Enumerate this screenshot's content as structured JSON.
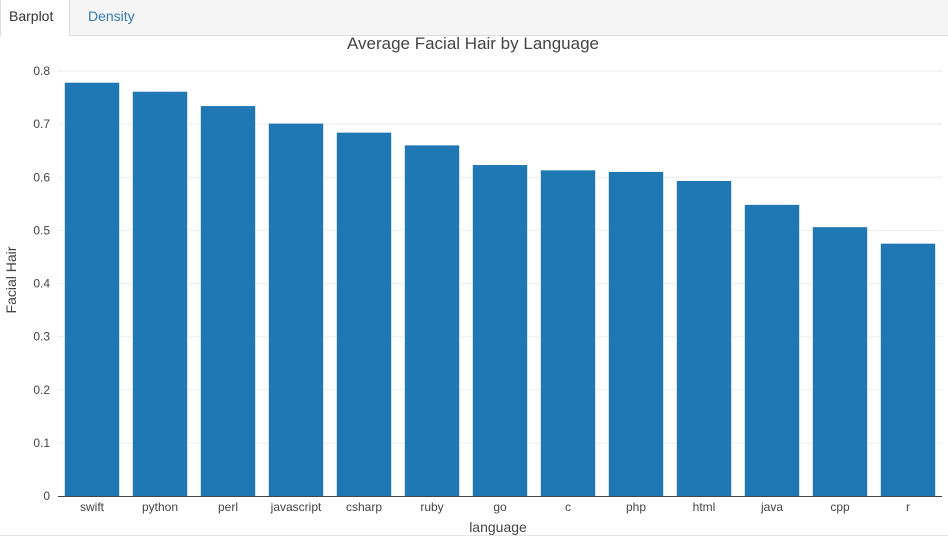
{
  "tabs": [
    {
      "label": "Barplot",
      "active": true
    },
    {
      "label": "Density",
      "active": false
    }
  ],
  "colors": {
    "bar": "#1f77b4",
    "grid": "#eeeeee",
    "axis": "#444444",
    "tab_link": "#337ab7"
  },
  "chart_data": {
    "type": "bar",
    "title": "Average Facial Hair by Language",
    "xlabel": "language",
    "ylabel": "Facial Hair",
    "ylim": [
      0,
      0.8
    ],
    "yticks": [
      "0",
      "0.1",
      "0.2",
      "0.3",
      "0.4",
      "0.5",
      "0.6",
      "0.7",
      "0.8"
    ],
    "grid": true,
    "categories": [
      "swift",
      "python",
      "perl",
      "javascript",
      "csharp",
      "ruby",
      "go",
      "c",
      "php",
      "html",
      "java",
      "cpp",
      "r"
    ],
    "values": [
      0.778,
      0.761,
      0.734,
      0.701,
      0.684,
      0.66,
      0.623,
      0.613,
      0.61,
      0.593,
      0.548,
      0.506,
      0.475
    ]
  }
}
